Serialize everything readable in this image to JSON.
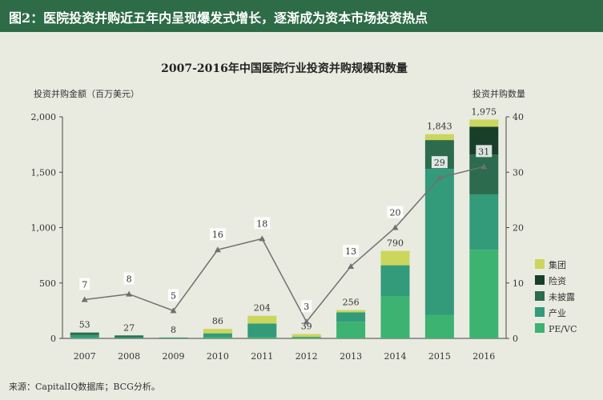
{
  "header": {
    "title": "图2：医院投资并购近五年内呈现爆发式增长，逐渐成为资本市场投资热点",
    "background": "#2e6b47"
  },
  "chart_data": {
    "type": "bar",
    "title": "2007-2016年中国医院行业投资并购规模和数量",
    "categories": [
      "2007",
      "2008",
      "2009",
      "2010",
      "2011",
      "2012",
      "2013",
      "2014",
      "2015",
      "2016"
    ],
    "y_left_label": "投资并购金额（百万美元）",
    "y_right_label": "投资并购数量",
    "y_left_range": [
      0,
      2000
    ],
    "y_left_ticks": [
      "0",
      "500",
      "1,000",
      "1,500",
      "2,000"
    ],
    "y_right_range": [
      0,
      40
    ],
    "y_right_ticks": [
      "0",
      "10",
      "20",
      "30",
      "40"
    ],
    "totals": [
      "53",
      "27",
      "8",
      "86",
      "204",
      "39",
      "256",
      "790",
      "1,843",
      "1,975"
    ],
    "series": [
      {
        "name": "PE/VC",
        "color": "#3cb371",
        "values": [
          5,
          3,
          2,
          10,
          10,
          5,
          150,
          380,
          210,
          800
        ]
      },
      {
        "name": "产业",
        "color": "#339a7a",
        "values": [
          25,
          8,
          6,
          36,
          124,
          9,
          86,
          280,
          1320,
          500
        ]
      },
      {
        "name": "未披露",
        "color": "#2c6b4d",
        "values": [
          23,
          16,
          0,
          0,
          0,
          0,
          0,
          0,
          260,
          360
        ]
      },
      {
        "name": "险资",
        "color": "#183f2a",
        "values": [
          0,
          0,
          0,
          0,
          0,
          0,
          0,
          0,
          0,
          250
        ]
      },
      {
        "name": "集团",
        "color": "#cbd65c",
        "values": [
          0,
          0,
          0,
          40,
          70,
          25,
          20,
          130,
          53,
          65
        ]
      }
    ],
    "count_series": {
      "values": [
        7,
        8,
        5,
        16,
        18,
        3,
        13,
        20,
        29,
        31
      ],
      "labels": [
        "7",
        "8",
        "5",
        "16",
        "18",
        "3",
        "13",
        "20",
        "29",
        "31"
      ],
      "color": "#707070"
    }
  },
  "footer": {
    "source": "来源：CapitalIQ数据库；BCG分析。"
  }
}
